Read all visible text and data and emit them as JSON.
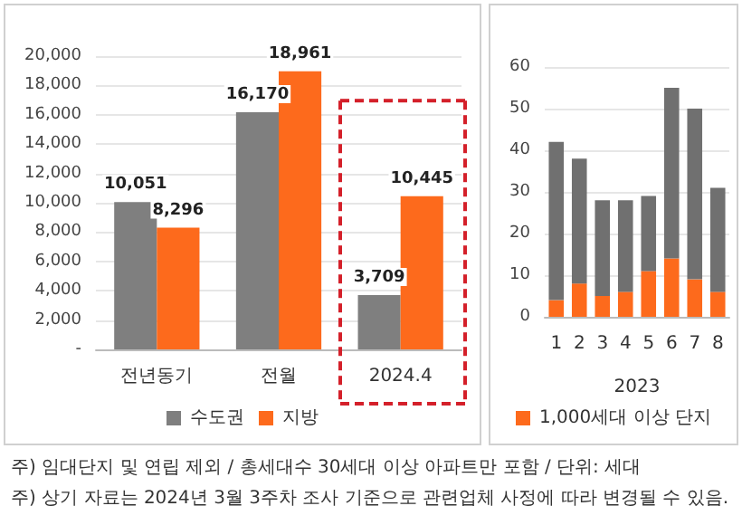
{
  "chart_data": [
    {
      "type": "bar",
      "categories": [
        "전년동기",
        "전월",
        "2024.4"
      ],
      "series": [
        {
          "name": "수도권",
          "color": "#7f7f7f",
          "values": [
            10051,
            16170,
            3709
          ],
          "value_labels": [
            "10,051",
            "16,170",
            "3,709"
          ]
        },
        {
          "name": "지방",
          "color": "#fd6a1c",
          "values": [
            8296,
            18961,
            10445
          ],
          "value_labels": [
            "8,296",
            "18,961",
            "10,445"
          ]
        }
      ],
      "ylim": [
        0,
        20000
      ],
      "yticks": [
        {
          "value": 0,
          "label": "-"
        },
        {
          "value": 2000,
          "label": "2,000"
        },
        {
          "value": 4000,
          "label": "4,000"
        },
        {
          "value": 6000,
          "label": "6,000"
        },
        {
          "value": 8000,
          "label": "8,000"
        },
        {
          "value": 10000,
          "label": "10,000"
        },
        {
          "value": 12000,
          "label": "12,000"
        },
        {
          "value": 14000,
          "label": "14,000"
        },
        {
          "value": 16000,
          "label": "16,000"
        },
        {
          "value": 18000,
          "label": "18,000"
        },
        {
          "value": 20000,
          "label": "20,000"
        }
      ],
      "grid": "y",
      "legend": "bottom",
      "annotations": [
        "주) 임대단지 및 연립 제외 / 총세대수 30세대 이상 아파트만 포함 / 단위: 세대",
        "주) 상기 자료는 2024년 3월 3주차 조사 기준으로 관련업체 사정에 따라 변경될 수 있음."
      ]
    },
    {
      "type": "bar",
      "stacked": true,
      "categories": [
        "1",
        "2",
        "3",
        "4",
        "5",
        "6",
        "7",
        "8"
      ],
      "xlabel": "2023",
      "series": [
        {
          "name": "1,000세대 이상 단지",
          "color": "#fd6a1c",
          "values": [
            4,
            8,
            5,
            6,
            11,
            14,
            9,
            6
          ]
        },
        {
          "color": "#707070",
          "values": [
            38,
            30,
            23,
            22,
            18,
            41,
            41,
            25
          ]
        }
      ],
      "ylim": [
        0,
        60
      ],
      "yticks": [
        0,
        10,
        20,
        30,
        40,
        50,
        60
      ],
      "grid": "y",
      "legend": "bottom"
    }
  ]
}
